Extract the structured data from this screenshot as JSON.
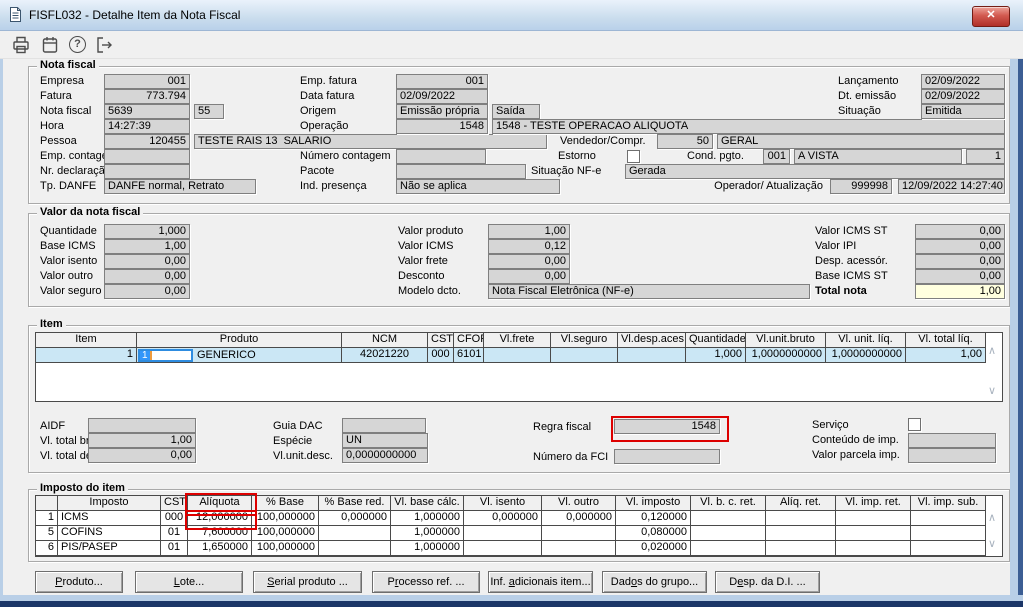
{
  "window": {
    "title": "FISFL032 - Detalhe Item da Nota Fiscal",
    "close_glyph": "✕"
  },
  "colors": {
    "highlight_red": "#dd0000",
    "row_highlight": "#cbe7f5",
    "total_field_bg": "#ffffdf",
    "close_button_red": "#b03029",
    "titlebar_blue": "#b9d1ea"
  },
  "nota_fiscal": {
    "group_label": "Nota fiscal",
    "empresa": {
      "label": "Empresa",
      "value": "001"
    },
    "fatura": {
      "label": "Fatura",
      "value": "773.794"
    },
    "nota_fiscal": {
      "label": "Nota fiscal",
      "value": "5639",
      "serie": "55"
    },
    "hora": {
      "label": "Hora",
      "value": "14:27:39"
    },
    "pessoa": {
      "label": "Pessoa",
      "value": "120455",
      "nome": "TESTE RAIS 13  SALARIO"
    },
    "emp_contagem": {
      "label": "Emp. contagem",
      "value": ""
    },
    "nr_declaracao": {
      "label": "Nr. declaração",
      "value": ""
    },
    "tp_danfe": {
      "label": "Tp. DANFE",
      "value": "DANFE normal, Retrato"
    },
    "emp_fatura": {
      "label": "Emp. fatura",
      "value": "001"
    },
    "data_fatura": {
      "label": "Data fatura",
      "value": "02/09/2022"
    },
    "origem": {
      "label": "Origem",
      "value": "Emissão própria",
      "tipo": "Saída"
    },
    "operacao": {
      "label": "Operação",
      "value": "1548",
      "descricao": "1548 - TESTE OPERACAO ALIQUOTA"
    },
    "numero_contagem": {
      "label": "Número contagem",
      "value": ""
    },
    "pacote": {
      "label": "Pacote",
      "value": ""
    },
    "ind_presenca": {
      "label": "Ind. presença",
      "value": "Não se aplica"
    },
    "vendedor": {
      "label": "Vendedor/Compr.",
      "value": "50",
      "nome": "GERAL"
    },
    "estorno": {
      "label": "Estorno",
      "checked": false
    },
    "cond_pgto": {
      "label": "Cond. pgto.",
      "value": "001",
      "descricao": "A VISTA",
      "parcelas": "1"
    },
    "situacao_nfe": {
      "label": "Situação NF-e",
      "value": "Gerada"
    },
    "operador": {
      "label": "Operador/ Atualização",
      "value": "999998",
      "data_hora": "12/09/2022 14:27:40"
    },
    "lancamento": {
      "label": "Lançamento",
      "value": "02/09/2022"
    },
    "dt_emissao": {
      "label": "Dt. emissão",
      "value": "02/09/2022"
    },
    "situacao": {
      "label": "Situação",
      "value": "Emitida"
    }
  },
  "valor_nota": {
    "group_label": "Valor da nota fiscal",
    "quantidade": {
      "label": "Quantidade",
      "value": "1,000"
    },
    "base_icms": {
      "label": "Base ICMS",
      "value": "1,00"
    },
    "valor_isento": {
      "label": "Valor isento",
      "value": "0,00"
    },
    "valor_outro": {
      "label": "Valor outro",
      "value": "0,00"
    },
    "valor_seguro": {
      "label": "Valor seguro",
      "value": "0,00"
    },
    "valor_produto": {
      "label": "Valor produto",
      "value": "1,00"
    },
    "valor_icms": {
      "label": "Valor ICMS",
      "value": "0,12"
    },
    "valor_frete": {
      "label": "Valor frete",
      "value": "0,00"
    },
    "desconto": {
      "label": "Desconto",
      "value": "0,00"
    },
    "modelo_dcto": {
      "label": "Modelo dcto.",
      "value": "Nota Fiscal Eletrônica (NF-e)"
    },
    "valor_icms_st": {
      "label": "Valor ICMS ST",
      "value": "0,00"
    },
    "valor_ipi": {
      "label": "Valor IPI",
      "value": "0,00"
    },
    "desp_acessor": {
      "label": "Desp. acessór.",
      "value": "0,00"
    },
    "base_icms_st": {
      "label": "Base ICMS ST",
      "value": "0,00"
    },
    "total_nota": {
      "label": "Total nota",
      "value": "1,00"
    }
  },
  "item": {
    "group_label": "Item",
    "columns": [
      "Item",
      "Produto",
      "NCM",
      "CST",
      "CFOP",
      "Vl.frete",
      "Vl.seguro",
      "Vl.desp.aces.",
      "Quantidade",
      "Vl.unit.bruto",
      "Vl. unit. líq.",
      "Vl. total líq."
    ],
    "row": {
      "item": "1",
      "produto_codigo": "1",
      "produto_descricao": "GENERICO",
      "ncm": "42021220",
      "cst": "000",
      "cfop": "6101",
      "vl_frete": "",
      "vl_seguro": "",
      "vl_desp_aces": "",
      "quantidade": "1,000",
      "vl_unit_bruto": "1,0000000000",
      "vl_unit_liq": "1,0000000000",
      "vl_total_liq": "1,00"
    },
    "aidf": {
      "label": "AIDF",
      "value": ""
    },
    "vl_total_bruto": {
      "label": "Vl. total bruto",
      "value": "1,00"
    },
    "vl_total_desc": {
      "label": "Vl. total desc.",
      "value": "0,00"
    },
    "guia_dac": {
      "label": "Guia DAC",
      "value": ""
    },
    "especie": {
      "label": "Espécie",
      "value": "UN"
    },
    "vl_unit_desc": {
      "label": "Vl.unit.desc.",
      "value": "0,0000000000"
    },
    "regra_fiscal": {
      "label": "Regra fiscal",
      "value": "1548"
    },
    "numero_fci": {
      "label": "Número da FCI",
      "value": ""
    },
    "servico": {
      "label": "Serviço",
      "checked": false
    },
    "conteudo_imp": {
      "label": "Conteúdo de imp.",
      "value": ""
    },
    "valor_parcela_imp": {
      "label": "Valor parcela imp.",
      "value": ""
    }
  },
  "imposto": {
    "group_label": "Imposto do item",
    "columns": [
      "",
      "Imposto",
      "CST",
      "Alíquota",
      "% Base",
      "% Base red.",
      "Vl. base cálc.",
      "Vl. isento",
      "Vl. outro",
      "Vl. imposto",
      "Vl. b. c. ret.",
      "Alíq. ret.",
      "Vl. imp. ret.",
      "Vl. imp. sub."
    ],
    "rows": [
      [
        "1",
        "ICMS",
        "000",
        "12,000000",
        "100,000000",
        "0,000000",
        "1,000000",
        "0,000000",
        "0,000000",
        "0,120000",
        "",
        "",
        "",
        ""
      ],
      [
        "5",
        "COFINS",
        "01",
        "7,600000",
        "100,000000",
        "",
        "1,000000",
        "",
        "",
        "0,080000",
        "",
        "",
        "",
        ""
      ],
      [
        "6",
        "PIS/PASEP",
        "01",
        "1,650000",
        "100,000000",
        "",
        "1,000000",
        "",
        "",
        "0,020000",
        "",
        "",
        "",
        ""
      ]
    ]
  },
  "footer": {
    "buttons": [
      {
        "label": "Produto...",
        "mnemonic": 0
      },
      {
        "label": "Lote...",
        "mnemonic": 0
      },
      {
        "label": "Serial produto ...",
        "mnemonic": 0
      },
      {
        "label": "Processo ref. ...",
        "mnemonic": 1
      },
      {
        "label": "Inf. adicionais item...",
        "mnemonic": 5
      },
      {
        "label": "Dados do grupo...",
        "mnemonic": 3
      },
      {
        "label": "Desp. da D.I. ...",
        "mnemonic": 1
      }
    ]
  }
}
